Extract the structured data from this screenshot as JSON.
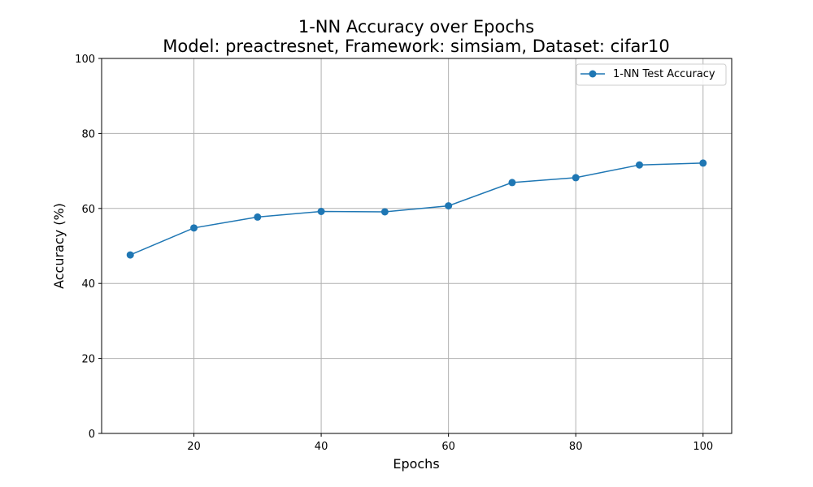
{
  "chart_data": {
    "type": "line",
    "title": "1-NN Accuracy over Epochs",
    "subtitle": "Model: preactresnet, Framework: simsiam, Dataset: cifar10",
    "xlabel": "Epochs",
    "ylabel": "Accuracy (%)",
    "xlim": [
      5.5,
      104.5
    ],
    "ylim": [
      0,
      100
    ],
    "xticks": [
      20,
      40,
      60,
      80,
      100
    ],
    "yticks": [
      0,
      20,
      40,
      60,
      80,
      100
    ],
    "grid": true,
    "legend_position": "top-right",
    "series": [
      {
        "name": "1-NN Test Accuracy",
        "color": "#1f77b4",
        "marker": "circle",
        "x": [
          10,
          20,
          30,
          40,
          50,
          60,
          70,
          80,
          90,
          100
        ],
        "y": [
          47.6,
          54.8,
          57.7,
          59.2,
          59.1,
          60.7,
          66.9,
          68.2,
          71.6,
          72.1
        ]
      }
    ]
  }
}
